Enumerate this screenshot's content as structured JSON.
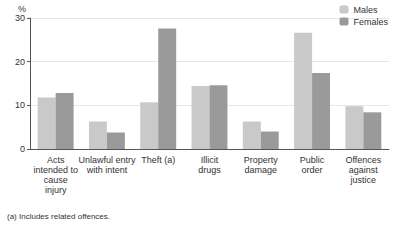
{
  "chart_data": {
    "type": "bar",
    "y_label": "%",
    "footnote": "(a) Includes related offences.",
    "categories": [
      "Acts\nintended to\ncause\ninjury",
      "Unlawful entry\nwith intent",
      "Theft (a)",
      "Illicit\ndrugs",
      "Property\ndamage",
      "Public\norder",
      "Offences\nagainst\njustice"
    ],
    "series": [
      {
        "name": "Males",
        "color": "#c9c9c9",
        "values": [
          11.8,
          6.3,
          10.7,
          14.4,
          6.3,
          26.6,
          9.8
        ]
      },
      {
        "name": "Females",
        "color": "#9a9a9a",
        "values": [
          12.8,
          3.8,
          27.6,
          14.6,
          4.0,
          17.4,
          8.4
        ]
      }
    ],
    "ylim": [
      0,
      30
    ],
    "yticks": [
      0,
      10,
      20,
      30
    ],
    "grid": true,
    "legend": "top-right"
  }
}
